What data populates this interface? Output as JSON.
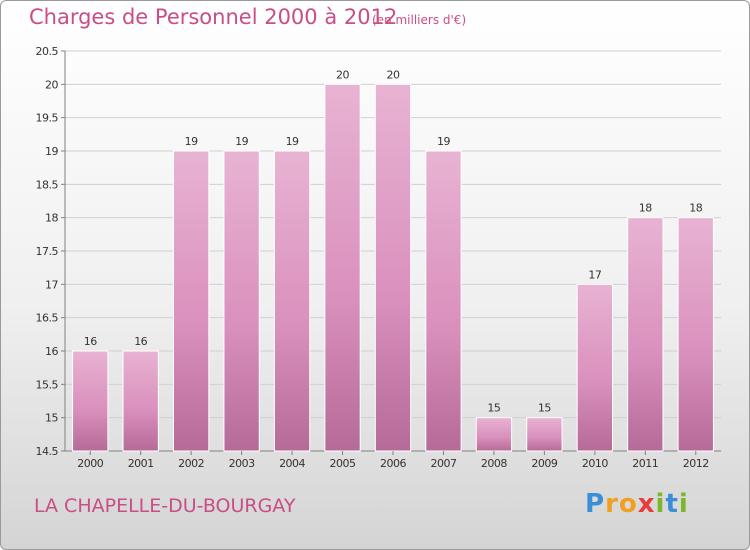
{
  "header": {
    "title": "Charges de Personnel 2000 à 2012",
    "unit": "(en milliers d'€)"
  },
  "footer": {
    "place": "LA CHAPELLE-DU-BOURGAY",
    "logo_letters": [
      "P",
      "r",
      "o",
      "x",
      "i",
      "t",
      "i"
    ],
    "logo_colors": [
      "#3a8fd6",
      "#f0a020",
      "#f0a020",
      "#e83c3c",
      "#7ab829",
      "#3a8fd6",
      "#7ab829"
    ]
  },
  "colors": {
    "bar": "#d98fbc",
    "bar_light": "#e8b3d3",
    "bar_dark": "#b56a98",
    "grid": "#d0d0d0",
    "axis": "#808080",
    "text": "#333333"
  },
  "chart_data": {
    "type": "bar",
    "categories": [
      "2000",
      "2001",
      "2002",
      "2003",
      "2004",
      "2005",
      "2006",
      "2007",
      "2008",
      "2009",
      "2010",
      "2011",
      "2012"
    ],
    "values": [
      16,
      16,
      19,
      19,
      19,
      20,
      20,
      19,
      15,
      15,
      17,
      18,
      18
    ],
    "value_labels": [
      "16",
      "16",
      "19",
      "19",
      "19",
      "20",
      "20",
      "19",
      "15",
      "15",
      "17",
      "18",
      "18"
    ],
    "yticks": [
      "14.5",
      "15",
      "15.5",
      "16",
      "16.5",
      "17",
      "17.5",
      "18",
      "18.5",
      "19",
      "19.5",
      "20",
      "20.5"
    ],
    "ylim": [
      14.5,
      20.5
    ],
    "grid": true
  }
}
